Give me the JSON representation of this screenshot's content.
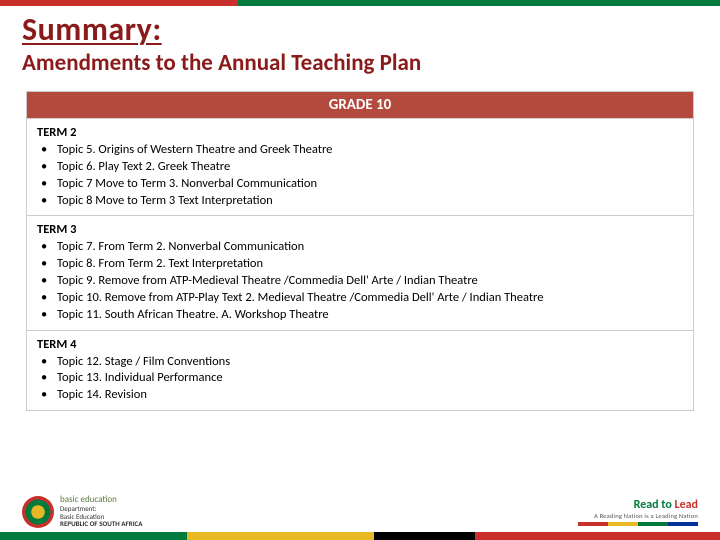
{
  "header": {
    "title": "Summary:",
    "subtitle": "Amendments to the Annual Teaching Plan"
  },
  "grade_bar": "GRADE 10",
  "terms": [
    {
      "label": "TERM 2",
      "items": [
        "Topic 5. Origins of Western Theatre and Greek Theatre",
        "Topic 6. Play Text 2. Greek Theatre",
        "Topic 7  Move to Term 3. Nonverbal Communication",
        "Topic 8  Move to Term 3  Text Interpretation"
      ]
    },
    {
      "label": "TERM 3",
      "items": [
        "Topic 7.   From Term  2. Nonverbal Communication",
        "Topic 8.   From Term  2. Text Interpretation",
        "Topic 9.   Remove from ATP-Medieval Theatre /Commedia Dell' Arte / Indian Theatre",
        "Topic 10. Remove from ATP-Play Text 2. Medieval Theatre /Commedia Dell' Arte / Indian Theatre",
        "Topic 11. South African Theatre. A. Workshop Theatre"
      ]
    },
    {
      "label": "TERM 4",
      "items": [
        "Topic 12. Stage / Film Conventions",
        "Topic 13. Individual Performance",
        "Topic 14. Revision"
      ]
    }
  ],
  "footer": {
    "left": {
      "line1": "basic education",
      "line2": "Department:",
      "line3": "Basic Education",
      "line4": "REPUBLIC OF SOUTH AFRICA"
    },
    "right": {
      "brand_read": "Read",
      "brand_to": " to ",
      "brand_lead": "Lead",
      "tagline": "A Reading Nation is a Leading Nation"
    }
  },
  "colors": {
    "maroon": "#8b1a1a",
    "bar": "#b34a3d",
    "green": "#007a3d",
    "red": "#c9302c",
    "gold": "#e8b923"
  }
}
